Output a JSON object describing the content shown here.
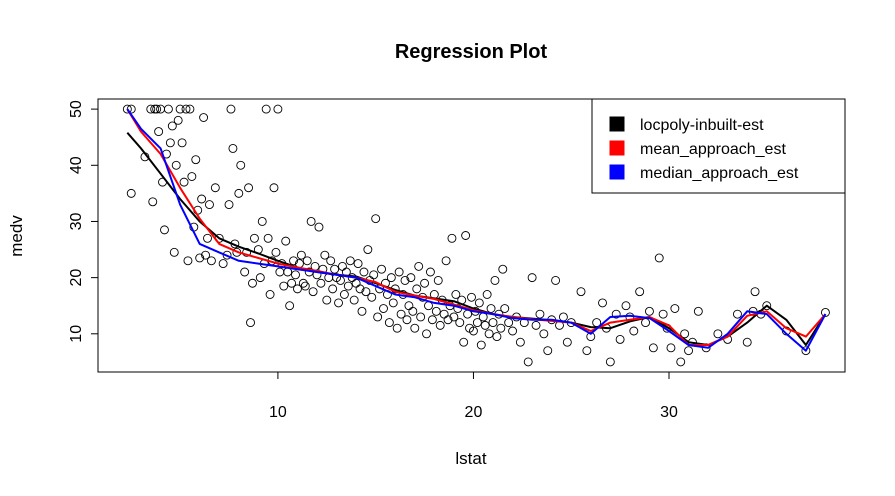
{
  "chart_data": {
    "type": "scatter",
    "title": "Regression Plot",
    "xlabel": "lstat",
    "ylabel": "medv",
    "xlim": [
      0.8,
      39.0
    ],
    "ylim": [
      3.2,
      51.8
    ],
    "x_ticks": [
      10,
      20,
      30
    ],
    "y_ticks": [
      10,
      20,
      30,
      40,
      50
    ],
    "grid": false,
    "legend_position": "top-right",
    "legend": [
      {
        "label": "locpoly-inbuilt-est",
        "color": "#000000"
      },
      {
        "label": "mean_approach_est",
        "color": "#ff0000"
      },
      {
        "label": "median_approach_est",
        "color": "#0000ff"
      }
    ],
    "points": [
      [
        2.3,
        50
      ],
      [
        2.5,
        50
      ],
      [
        2.5,
        35
      ],
      [
        3.2,
        41.5
      ],
      [
        3.5,
        50
      ],
      [
        3.6,
        33.5
      ],
      [
        3.7,
        50
      ],
      [
        3.8,
        50
      ],
      [
        3.9,
        46
      ],
      [
        4.0,
        50
      ],
      [
        4.1,
        37
      ],
      [
        4.2,
        28.5
      ],
      [
        4.3,
        42
      ],
      [
        4.4,
        50
      ],
      [
        4.5,
        44
      ],
      [
        4.6,
        47
      ],
      [
        4.7,
        24.5
      ],
      [
        4.8,
        40
      ],
      [
        4.9,
        48
      ],
      [
        5.0,
        50
      ],
      [
        5.1,
        44
      ],
      [
        5.2,
        37
      ],
      [
        5.3,
        50
      ],
      [
        5.4,
        23
      ],
      [
        5.5,
        50
      ],
      [
        5.6,
        38
      ],
      [
        5.7,
        29
      ],
      [
        5.8,
        41
      ],
      [
        5.9,
        32
      ],
      [
        6.0,
        23.5
      ],
      [
        6.1,
        34
      ],
      [
        6.2,
        48.5
      ],
      [
        6.3,
        24
      ],
      [
        6.4,
        27
      ],
      [
        6.5,
        33
      ],
      [
        6.6,
        23
      ],
      [
        6.8,
        36
      ],
      [
        7.0,
        27
      ],
      [
        7.2,
        22.5
      ],
      [
        7.4,
        24
      ],
      [
        7.5,
        33
      ],
      [
        7.6,
        50
      ],
      [
        7.7,
        43
      ],
      [
        7.8,
        26
      ],
      [
        7.9,
        24.5
      ],
      [
        8.0,
        35
      ],
      [
        8.1,
        40
      ],
      [
        8.3,
        21
      ],
      [
        8.4,
        24.5
      ],
      [
        8.5,
        36
      ],
      [
        8.6,
        12
      ],
      [
        8.7,
        19
      ],
      [
        8.8,
        27
      ],
      [
        9.0,
        25
      ],
      [
        9.1,
        20
      ],
      [
        9.2,
        30
      ],
      [
        9.3,
        22.5
      ],
      [
        9.4,
        50
      ],
      [
        9.5,
        27
      ],
      [
        9.6,
        17
      ],
      [
        9.7,
        23
      ],
      [
        9.8,
        36
      ],
      [
        9.9,
        24.5
      ],
      [
        10.0,
        50
      ],
      [
        10.1,
        21
      ],
      [
        10.2,
        22.5
      ],
      [
        10.3,
        18.5
      ],
      [
        10.4,
        26.5
      ],
      [
        10.5,
        21
      ],
      [
        10.6,
        15
      ],
      [
        10.7,
        19
      ],
      [
        10.8,
        23
      ],
      [
        10.9,
        20.5
      ],
      [
        11.0,
        18
      ],
      [
        11.1,
        22.5
      ],
      [
        11.2,
        24
      ],
      [
        11.3,
        19
      ],
      [
        11.4,
        18.5
      ],
      [
        11.5,
        23
      ],
      [
        11.6,
        21
      ],
      [
        11.7,
        30
      ],
      [
        11.8,
        17.5
      ],
      [
        11.9,
        22
      ],
      [
        12.0,
        20.5
      ],
      [
        12.1,
        29
      ],
      [
        12.2,
        19
      ],
      [
        12.3,
        21.5
      ],
      [
        12.4,
        24
      ],
      [
        12.5,
        16
      ],
      [
        12.6,
        20
      ],
      [
        12.7,
        23
      ],
      [
        12.8,
        18
      ],
      [
        12.9,
        21.5
      ],
      [
        13.0,
        20
      ],
      [
        13.1,
        15.5
      ],
      [
        13.2,
        19.5
      ],
      [
        13.3,
        22
      ],
      [
        13.4,
        17
      ],
      [
        13.5,
        21
      ],
      [
        13.6,
        18.5
      ],
      [
        13.7,
        23
      ],
      [
        13.8,
        20
      ],
      [
        13.9,
        16
      ],
      [
        14.0,
        19
      ],
      [
        14.1,
        22.5
      ],
      [
        14.2,
        18
      ],
      [
        14.3,
        14
      ],
      [
        14.4,
        21
      ],
      [
        14.5,
        17.5
      ],
      [
        14.6,
        25
      ],
      [
        14.7,
        19.5
      ],
      [
        14.8,
        16.5
      ],
      [
        14.9,
        20.5
      ],
      [
        15.0,
        30.5
      ],
      [
        15.1,
        13
      ],
      [
        15.2,
        18
      ],
      [
        15.3,
        21.5
      ],
      [
        15.4,
        14.5
      ],
      [
        15.5,
        19
      ],
      [
        15.6,
        17
      ],
      [
        15.7,
        12
      ],
      [
        15.8,
        20
      ],
      [
        15.9,
        15.5
      ],
      [
        16.0,
        18
      ],
      [
        16.1,
        11
      ],
      [
        16.2,
        21
      ],
      [
        16.3,
        13.5
      ],
      [
        16.4,
        17
      ],
      [
        16.5,
        19.5
      ],
      [
        16.6,
        12.5
      ],
      [
        16.7,
        15
      ],
      [
        16.8,
        20
      ],
      [
        16.9,
        14
      ],
      [
        17.0,
        11
      ],
      [
        17.1,
        18
      ],
      [
        17.2,
        22
      ],
      [
        17.3,
        13
      ],
      [
        17.4,
        16.5
      ],
      [
        17.5,
        19
      ],
      [
        17.6,
        10
      ],
      [
        17.7,
        15
      ],
      [
        17.8,
        21
      ],
      [
        17.9,
        12.5
      ],
      [
        18.0,
        17
      ],
      [
        18.1,
        14
      ],
      [
        18.2,
        19.5
      ],
      [
        18.3,
        11.5
      ],
      [
        18.4,
        16
      ],
      [
        18.5,
        13.5
      ],
      [
        18.6,
        23
      ],
      [
        18.7,
        12.5
      ],
      [
        18.8,
        15
      ],
      [
        18.9,
        27
      ],
      [
        19.0,
        13
      ],
      [
        19.1,
        17
      ],
      [
        19.2,
        14.5
      ],
      [
        19.3,
        12
      ],
      [
        19.4,
        16
      ],
      [
        19.5,
        8.5
      ],
      [
        19.6,
        27.5
      ],
      [
        19.7,
        13.5
      ],
      [
        19.8,
        11
      ],
      [
        19.9,
        16.5
      ],
      [
        20.0,
        10.5
      ],
      [
        20.1,
        14
      ],
      [
        20.2,
        12
      ],
      [
        20.3,
        15.5
      ],
      [
        20.4,
        8
      ],
      [
        20.5,
        13
      ],
      [
        20.6,
        11.5
      ],
      [
        20.7,
        17
      ],
      [
        20.8,
        10
      ],
      [
        20.9,
        14.5
      ],
      [
        21.0,
        12
      ],
      [
        21.1,
        19.5
      ],
      [
        21.2,
        9.5
      ],
      [
        21.3,
        13.5
      ],
      [
        21.4,
        11
      ],
      [
        21.5,
        21.5
      ],
      [
        21.6,
        14.5
      ],
      [
        21.8,
        12
      ],
      [
        22.0,
        10.5
      ],
      [
        22.2,
        13
      ],
      [
        22.4,
        8.5
      ],
      [
        22.6,
        12
      ],
      [
        22.8,
        5
      ],
      [
        23.0,
        20
      ],
      [
        23.2,
        11.5
      ],
      [
        23.4,
        13.5
      ],
      [
        23.6,
        10
      ],
      [
        23.8,
        7
      ],
      [
        24.0,
        12.5
      ],
      [
        24.2,
        19.5
      ],
      [
        24.4,
        11.5
      ],
      [
        24.6,
        13
      ],
      [
        24.8,
        8.5
      ],
      [
        25.0,
        12
      ],
      [
        25.5,
        17.5
      ],
      [
        25.8,
        7
      ],
      [
        26.0,
        9.5
      ],
      [
        26.3,
        12
      ],
      [
        26.6,
        15.5
      ],
      [
        26.8,
        11
      ],
      [
        27.0,
        5
      ],
      [
        27.3,
        13.5
      ],
      [
        27.5,
        9
      ],
      [
        27.8,
        15
      ],
      [
        28.0,
        13
      ],
      [
        28.2,
        10.5
      ],
      [
        28.5,
        17.5
      ],
      [
        28.8,
        12
      ],
      [
        29.0,
        14
      ],
      [
        29.2,
        7.5
      ],
      [
        29.5,
        23.5
      ],
      [
        29.7,
        13.5
      ],
      [
        29.9,
        11
      ],
      [
        30.1,
        7.5
      ],
      [
        30.3,
        14.5
      ],
      [
        30.6,
        5
      ],
      [
        30.8,
        10
      ],
      [
        31.0,
        7
      ],
      [
        31.2,
        8.5
      ],
      [
        31.5,
        14
      ],
      [
        31.9,
        7.5
      ],
      [
        32.5,
        10
      ],
      [
        33.0,
        9
      ],
      [
        33.5,
        13.5
      ],
      [
        34.0,
        8.5
      ],
      [
        34.3,
        14
      ],
      [
        34.4,
        17.5
      ],
      [
        34.7,
        13.5
      ],
      [
        35.0,
        15
      ],
      [
        36.0,
        10.5
      ],
      [
        37.0,
        7
      ],
      [
        38.0,
        13.8
      ]
    ],
    "series": [
      {
        "name": "locpoly-inbuilt-est",
        "color": "#000000",
        "points": [
          [
            2.3,
            45.8
          ],
          [
            3,
            43
          ],
          [
            4,
            38.5
          ],
          [
            5,
            34
          ],
          [
            6,
            30
          ],
          [
            7,
            27
          ],
          [
            8,
            25.5
          ],
          [
            9,
            24.3
          ],
          [
            10,
            23
          ],
          [
            11,
            21.8
          ],
          [
            12,
            21
          ],
          [
            13,
            20.5
          ],
          [
            14,
            20.2
          ],
          [
            15,
            19
          ],
          [
            16,
            17.8
          ],
          [
            17,
            16.8
          ],
          [
            18,
            16.3
          ],
          [
            19,
            15.8
          ],
          [
            20,
            14.5
          ],
          [
            21,
            13.5
          ],
          [
            22,
            13
          ],
          [
            23,
            12.7
          ],
          [
            24,
            12.4
          ],
          [
            25,
            12
          ],
          [
            26,
            11.2
          ],
          [
            27,
            11
          ],
          [
            28,
            12.2
          ],
          [
            29,
            13
          ],
          [
            30,
            11
          ],
          [
            31,
            8.5
          ],
          [
            32,
            8
          ],
          [
            33,
            9.5
          ],
          [
            34,
            12
          ],
          [
            35,
            15
          ],
          [
            36,
            12.5
          ],
          [
            37,
            8
          ],
          [
            38,
            13.5
          ]
        ]
      },
      {
        "name": "mean_approach_est",
        "color": "#ff0000",
        "points": [
          [
            2.3,
            50
          ],
          [
            3,
            46
          ],
          [
            4,
            42
          ],
          [
            5,
            36
          ],
          [
            6,
            30.5
          ],
          [
            7,
            26
          ],
          [
            8,
            24.5
          ],
          [
            9,
            23.5
          ],
          [
            10,
            22.5
          ],
          [
            11,
            21.8
          ],
          [
            12,
            21.2
          ],
          [
            13,
            20.5
          ],
          [
            14,
            20
          ],
          [
            15,
            19.2
          ],
          [
            16,
            17.5
          ],
          [
            17,
            16.8
          ],
          [
            18,
            16.2
          ],
          [
            19,
            15.2
          ],
          [
            20,
            14.2
          ],
          [
            21,
            13.5
          ],
          [
            22,
            13
          ],
          [
            23,
            12.6
          ],
          [
            24,
            12.3
          ],
          [
            25,
            12
          ],
          [
            26,
            10.5
          ],
          [
            27,
            12
          ],
          [
            28,
            12.5
          ],
          [
            29,
            13
          ],
          [
            30,
            11.5
          ],
          [
            31,
            8
          ],
          [
            32,
            8
          ],
          [
            33,
            9.5
          ],
          [
            34,
            13.2
          ],
          [
            35,
            14
          ],
          [
            36,
            11
          ],
          [
            37,
            9.5
          ],
          [
            38,
            13.5
          ]
        ]
      },
      {
        "name": "median_approach_est",
        "color": "#0000ff",
        "points": [
          [
            2.3,
            50
          ],
          [
            3,
            46.5
          ],
          [
            4,
            43
          ],
          [
            5,
            33
          ],
          [
            6,
            26
          ],
          [
            7,
            24.5
          ],
          [
            8,
            23
          ],
          [
            9,
            22.5
          ],
          [
            10,
            22
          ],
          [
            11,
            21.5
          ],
          [
            12,
            21
          ],
          [
            13,
            20.5
          ],
          [
            14,
            20
          ],
          [
            15,
            18.5
          ],
          [
            16,
            17
          ],
          [
            17,
            16.5
          ],
          [
            18,
            15.5
          ],
          [
            19,
            15
          ],
          [
            20,
            14
          ],
          [
            21,
            13.5
          ],
          [
            22,
            12.8
          ],
          [
            23,
            12.5
          ],
          [
            24,
            12.5
          ],
          [
            25,
            12
          ],
          [
            26,
            10
          ],
          [
            27,
            13
          ],
          [
            28,
            13.2
          ],
          [
            29,
            12.8
          ],
          [
            30,
            10.5
          ],
          [
            31,
            8
          ],
          [
            32,
            7.5
          ],
          [
            33,
            10
          ],
          [
            34,
            14
          ],
          [
            35,
            13.5
          ],
          [
            36,
            10
          ],
          [
            37,
            7
          ],
          [
            38,
            13.5
          ]
        ]
      }
    ]
  }
}
